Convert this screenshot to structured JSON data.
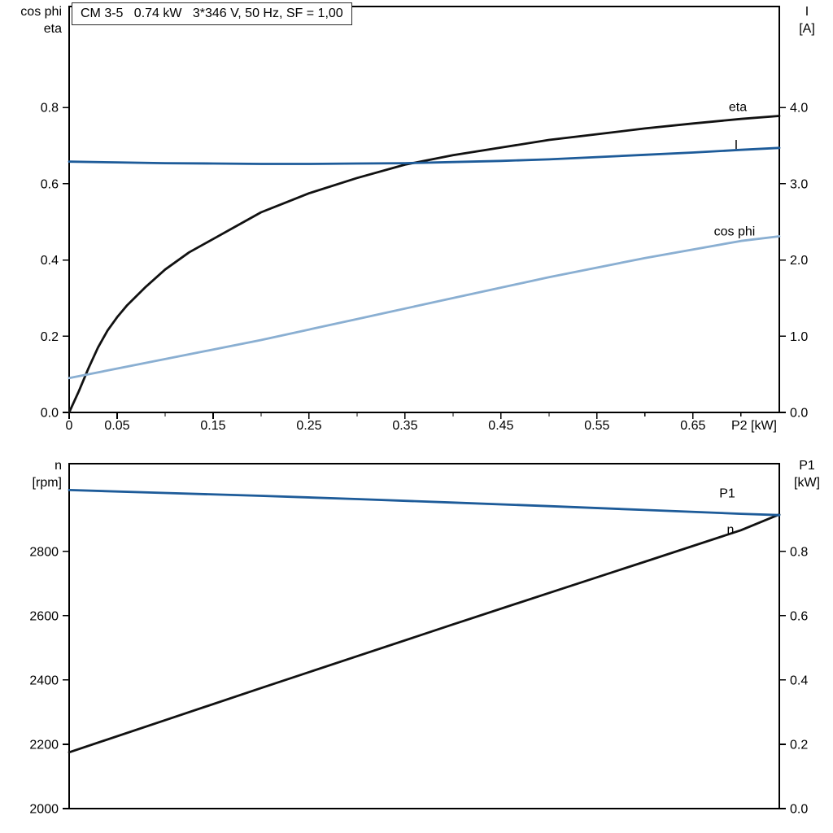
{
  "colors": {
    "curve_black": "#111111",
    "curve_dark_blue": "#1d5b99",
    "curve_light_blue": "#8aafd2",
    "axis": "#000000"
  },
  "chart_data": [
    {
      "type": "line",
      "title": "CM 3-5   0.74 kW   3*346 V, 50 Hz, SF = 1,00",
      "x_axis": {
        "label": "P2 [kW]",
        "range": [
          0,
          0.74
        ],
        "major_ticks": [
          0,
          0.05,
          0.15,
          0.25,
          0.35,
          0.45,
          0.55,
          0.65
        ],
        "tick_labels": [
          "0",
          "0.05",
          "0.15",
          "0.25",
          "0.35",
          "0.45",
          "0.55",
          "0.65"
        ],
        "minor_ticks": [
          0.1,
          0.2,
          0.3,
          0.4,
          0.5,
          0.6,
          0.7
        ]
      },
      "left_axis": {
        "title_lines": [
          "cos phi",
          "eta"
        ],
        "range": [
          0,
          1.065
        ],
        "ticks": [
          0,
          0.2,
          0.4,
          0.6,
          0.8
        ],
        "tick_labels": [
          "0.0",
          "0.2",
          "0.4",
          "0.6",
          "0.8"
        ]
      },
      "right_axis": {
        "title_lines": [
          "I",
          "[A]"
        ],
        "range": [
          0,
          5.325
        ],
        "ticks": [
          0,
          1,
          2,
          3,
          4
        ],
        "tick_labels": [
          "0.0",
          "1.0",
          "2.0",
          "3.0",
          "4.0"
        ]
      },
      "series": [
        {
          "name": "eta",
          "label": "eta",
          "axis": "left",
          "color_key": "curve_black",
          "points": [
            [
              0,
              0
            ],
            [
              0.01,
              0.055
            ],
            [
              0.02,
              0.115
            ],
            [
              0.03,
              0.17
            ],
            [
              0.04,
              0.215
            ],
            [
              0.05,
              0.25
            ],
            [
              0.06,
              0.28
            ],
            [
              0.08,
              0.33
            ],
            [
              0.1,
              0.375
            ],
            [
              0.125,
              0.42
            ],
            [
              0.15,
              0.455
            ],
            [
              0.175,
              0.49
            ],
            [
              0.2,
              0.525
            ],
            [
              0.225,
              0.55
            ],
            [
              0.25,
              0.575
            ],
            [
              0.3,
              0.615
            ],
            [
              0.35,
              0.65
            ],
            [
              0.4,
              0.675
            ],
            [
              0.45,
              0.695
            ],
            [
              0.5,
              0.715
            ],
            [
              0.55,
              0.73
            ],
            [
              0.6,
              0.745
            ],
            [
              0.65,
              0.758
            ],
            [
              0.7,
              0.77
            ],
            [
              0.74,
              0.778
            ]
          ]
        },
        {
          "name": "I",
          "label": "I",
          "axis": "right",
          "color_key": "curve_dark_blue",
          "points": [
            [
              0,
              3.29
            ],
            [
              0.05,
              3.28
            ],
            [
              0.1,
              3.27
            ],
            [
              0.15,
              3.265
            ],
            [
              0.2,
              3.26
            ],
            [
              0.25,
              3.26
            ],
            [
              0.3,
              3.265
            ],
            [
              0.35,
              3.27
            ],
            [
              0.4,
              3.285
            ],
            [
              0.45,
              3.3
            ],
            [
              0.5,
              3.32
            ],
            [
              0.55,
              3.35
            ],
            [
              0.6,
              3.38
            ],
            [
              0.65,
              3.41
            ],
            [
              0.7,
              3.445
            ],
            [
              0.74,
              3.47
            ]
          ]
        },
        {
          "name": "cos-phi",
          "label": "cos phi",
          "axis": "left",
          "color_key": "curve_light_blue",
          "points": [
            [
              0,
              0.09
            ],
            [
              0.1,
              0.14
            ],
            [
              0.2,
              0.19
            ],
            [
              0.3,
              0.245
            ],
            [
              0.4,
              0.3
            ],
            [
              0.5,
              0.355
            ],
            [
              0.6,
              0.405
            ],
            [
              0.7,
              0.45
            ],
            [
              0.74,
              0.462
            ]
          ]
        }
      ]
    },
    {
      "type": "line",
      "title": "",
      "x_axis": {
        "label": "",
        "range": [
          0,
          0.74
        ],
        "major_ticks": [],
        "tick_labels": [],
        "minor_ticks": []
      },
      "left_axis": {
        "title_lines": [
          "n",
          "[rpm]"
        ],
        "range": [
          2000,
          3073
        ],
        "ticks": [
          2000,
          2200,
          2400,
          2600,
          2800
        ],
        "tick_labels": [
          "2000",
          "2200",
          "2400",
          "2600",
          "2800"
        ]
      },
      "right_axis": {
        "title_lines": [
          "P1",
          "[kW]"
        ],
        "range": [
          0,
          1.073
        ],
        "ticks": [
          0,
          0.2,
          0.4,
          0.6,
          0.8
        ],
        "tick_labels": [
          "0.0",
          "0.2",
          "0.4",
          "0.6",
          "0.8"
        ]
      },
      "series": [
        {
          "name": "P1",
          "label": "P1",
          "axis": "right",
          "color_key": "curve_black",
          "points": [
            [
              0,
              0.175
            ],
            [
              0.1,
              0.275
            ],
            [
              0.2,
              0.375
            ],
            [
              0.3,
              0.474
            ],
            [
              0.4,
              0.573
            ],
            [
              0.5,
              0.671
            ],
            [
              0.6,
              0.768
            ],
            [
              0.7,
              0.866
            ],
            [
              0.74,
              0.915
            ]
          ]
        },
        {
          "name": "n",
          "label": "n",
          "axis": "left",
          "color_key": "curve_dark_blue",
          "points": [
            [
              0,
              2991
            ],
            [
              0.1,
              2982
            ],
            [
              0.2,
              2973
            ],
            [
              0.3,
              2963
            ],
            [
              0.4,
              2952
            ],
            [
              0.5,
              2941
            ],
            [
              0.6,
              2929
            ],
            [
              0.7,
              2917
            ],
            [
              0.74,
              2913
            ]
          ]
        }
      ]
    }
  ]
}
